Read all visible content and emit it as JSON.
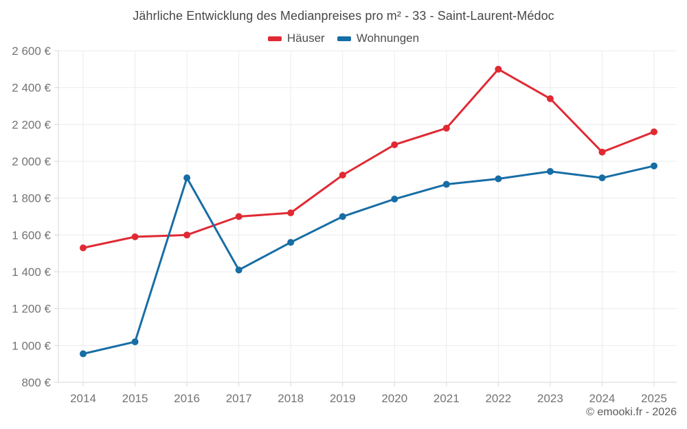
{
  "page": {
    "footer_credit": "© emooki.fr - 2026"
  },
  "chart_data": {
    "type": "line",
    "title": "Jährliche Entwicklung des Medianpreises pro m² - 33 - Saint-Laurent-Médoc",
    "xlabel": "",
    "ylabel": "",
    "categories": [
      "2014",
      "2015",
      "2016",
      "2017",
      "2018",
      "2019",
      "2020",
      "2021",
      "2022",
      "2023",
      "2024",
      "2025"
    ],
    "series": [
      {
        "name": "Häuser",
        "color": "#e02a33",
        "values": [
          1530,
          1590,
          1600,
          1700,
          1720,
          1925,
          2090,
          2180,
          2500,
          2340,
          2050,
          2160
        ]
      },
      {
        "name": "Wohnungen",
        "color": "#176da5",
        "values": [
          955,
          1020,
          1910,
          1410,
          1560,
          1700,
          1795,
          1875,
          1905,
          1945,
          1910,
          1975
        ]
      }
    ],
    "ylim": [
      800,
      2600
    ],
    "y_ticks": [
      800,
      1000,
      1200,
      1400,
      1600,
      1800,
      2000,
      2200,
      2400,
      2600
    ],
    "y_tick_labels": [
      "800 €",
      "1 000 €",
      "1 200 €",
      "1 400 €",
      "1 600 €",
      "1 800 €",
      "2 000 €",
      "2 200 €",
      "2 400 €",
      "2 600 €"
    ],
    "grid": true,
    "legend_position": "top",
    "currency": "€"
  },
  "style": {
    "grid_color": "#ebebeb",
    "axis_color": "#d6d6d6",
    "tick_label_color": "#737373"
  }
}
